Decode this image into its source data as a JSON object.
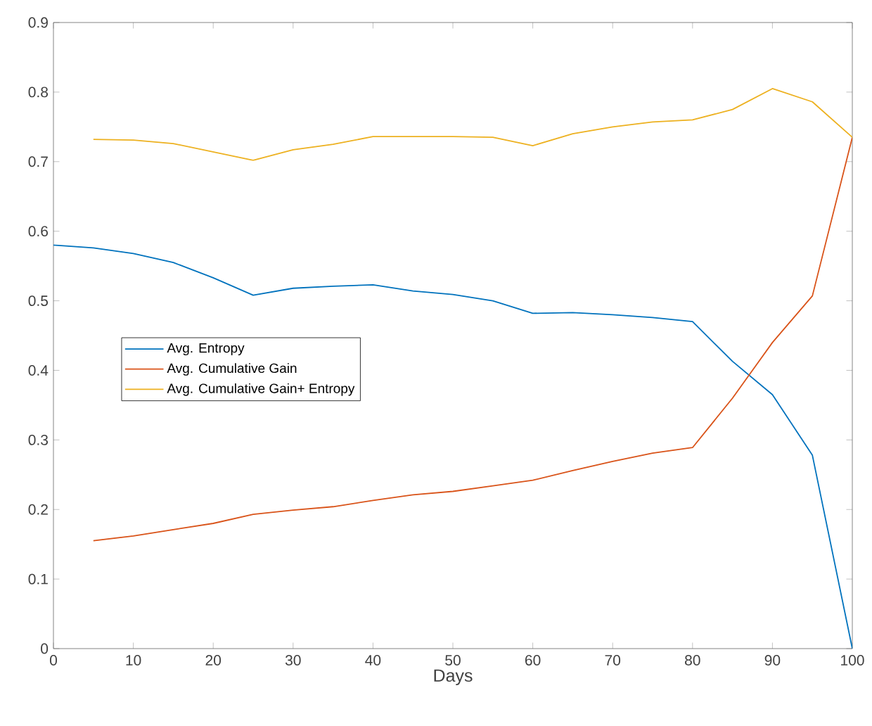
{
  "chart_data": {
    "type": "line",
    "xlabel": "Days",
    "x": [
      0,
      5,
      10,
      15,
      20,
      25,
      30,
      35,
      40,
      45,
      50,
      55,
      60,
      65,
      70,
      75,
      80,
      85,
      90,
      95,
      100
    ],
    "series": [
      {
        "name": "Avg. Entropy",
        "color": "#0072bd",
        "values": [
          0.58,
          0.576,
          0.568,
          0.555,
          0.533,
          0.508,
          0.518,
          0.521,
          0.523,
          0.514,
          0.509,
          0.5,
          0.482,
          0.483,
          0.48,
          0.476,
          0.47,
          0.413,
          0.365,
          0.278,
          0.0
        ]
      },
      {
        "name": "Avg. Cumulative Gain",
        "color": "#d95319",
        "values": [
          null,
          0.155,
          0.162,
          0.171,
          0.18,
          0.193,
          0.199,
          0.204,
          0.213,
          0.221,
          0.226,
          0.234,
          0.242,
          0.256,
          0.269,
          0.281,
          0.289,
          0.36,
          0.44,
          0.507,
          0.735
        ]
      },
      {
        "name": "Avg. Cumulative Gain+ Entropy",
        "color": "#edb120",
        "values": [
          null,
          0.732,
          0.731,
          0.726,
          0.714,
          0.702,
          0.717,
          0.725,
          0.736,
          0.736,
          0.736,
          0.735,
          0.723,
          0.74,
          0.75,
          0.757,
          0.76,
          0.775,
          0.805,
          0.786,
          0.735
        ]
      }
    ],
    "xlim": [
      0,
      100
    ],
    "ylim": [
      0,
      0.9
    ],
    "xticks": [
      0,
      10,
      20,
      30,
      40,
      50,
      60,
      70,
      80,
      90,
      100
    ],
    "yticks": [
      0,
      0.1,
      0.2,
      0.3,
      0.4,
      0.5,
      0.6,
      0.7,
      0.8,
      0.9
    ],
    "legend": "left",
    "grid": false,
    "marker": "none",
    "line_style": "solid"
  }
}
